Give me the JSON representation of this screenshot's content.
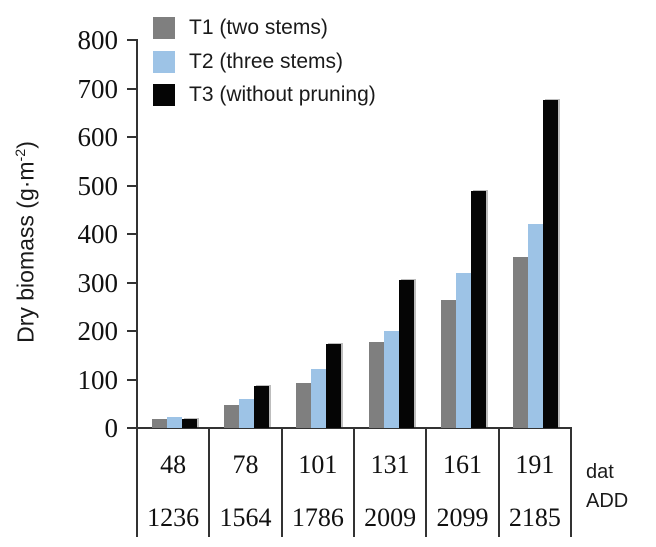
{
  "chart_data": {
    "type": "bar",
    "title": "",
    "ylabel_parts": {
      "main": "Dry biomass (g·m",
      "sup": "-2",
      "close": ")"
    },
    "ylim": [
      0,
      800
    ],
    "yticks": [
      0,
      100,
      200,
      300,
      400,
      500,
      600,
      700,
      800
    ],
    "grid": "off",
    "legend_position": "top-left",
    "axis_color": "#333333",
    "x_axis_rows": [
      {
        "label": "dat",
        "values": [
          "48",
          "78",
          "101",
          "131",
          "161",
          "191"
        ]
      },
      {
        "label": "ADD",
        "values": [
          "1236",
          "1564",
          "1786",
          "2009",
          "2099",
          "2185"
        ]
      }
    ],
    "series": [
      {
        "name": "T1 (two stems)",
        "color": "#7f7f7f",
        "values": [
          18,
          47,
          92,
          177,
          263,
          353
        ]
      },
      {
        "name": "T2 (three stems)",
        "color": "#9dc3e6",
        "values": [
          23,
          59,
          122,
          201,
          320,
          421
        ]
      },
      {
        "name": "T3 (without pruning)",
        "color": "#050505",
        "values": [
          19,
          87,
          174,
          306,
          489,
          676
        ]
      }
    ]
  }
}
